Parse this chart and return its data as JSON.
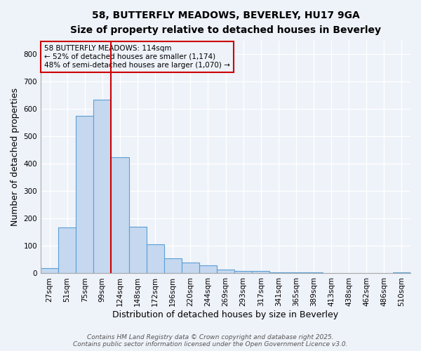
{
  "title1": "58, BUTTERFLY MEADOWS, BEVERLEY, HU17 9GA",
  "title2": "Size of property relative to detached houses in Beverley",
  "xlabel": "Distribution of detached houses by size in Beverley",
  "ylabel": "Number of detached properties",
  "annotation_line1": "58 BUTTERFLY MEADOWS: 114sqm",
  "annotation_line2": "← 52% of detached houses are smaller (1,174)",
  "annotation_line3": "48% of semi-detached houses are larger (1,070) →",
  "footer1": "Contains HM Land Registry data © Crown copyright and database right 2025.",
  "footer2": "Contains public sector information licensed under the Open Government Licence v3.0.",
  "categories": [
    "27sqm",
    "51sqm",
    "75sqm",
    "99sqm",
    "124sqm",
    "148sqm",
    "172sqm",
    "196sqm",
    "220sqm",
    "244sqm",
    "269sqm",
    "293sqm",
    "317sqm",
    "341sqm",
    "365sqm",
    "389sqm",
    "413sqm",
    "438sqm",
    "462sqm",
    "486sqm",
    "510sqm"
  ],
  "values": [
    18,
    168,
    575,
    635,
    425,
    170,
    105,
    55,
    40,
    30,
    15,
    10,
    8,
    5,
    5,
    3,
    2,
    1,
    1,
    1,
    5
  ],
  "bar_color": "#c5d8f0",
  "bar_edge_color": "#5a9fd4",
  "vline_x": 3.5,
  "vline_color": "#cc0000",
  "annotation_box_color": "#cc0000",
  "ylim": [
    0,
    850
  ],
  "yticks": [
    0,
    100,
    200,
    300,
    400,
    500,
    600,
    700,
    800
  ],
  "background_color": "#eef2f9",
  "grid_color": "#ffffff",
  "title_fontsize": 10,
  "subtitle_fontsize": 9,
  "axis_label_fontsize": 9,
  "tick_fontsize": 7.5,
  "annot_fontsize": 7.5,
  "footer_fontsize": 6.5
}
